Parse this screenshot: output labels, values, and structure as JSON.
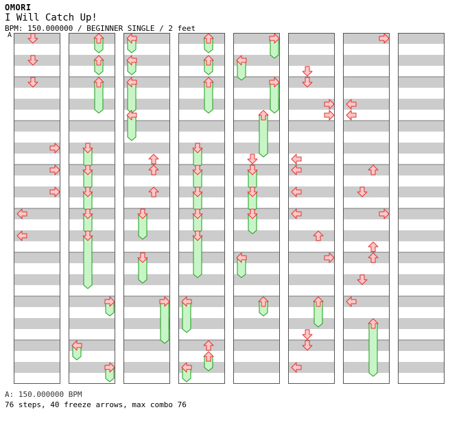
{
  "header": {
    "artist": "OMORI",
    "title": "I Will Catch Up!",
    "info": "BPM: 150.000000 / BEGINNER SINGLE / 2 feet",
    "bpm_marker": "A"
  },
  "footer": {
    "bpm_legend": "A: 150.000000 BPM",
    "summary": "76 steps, 40 freeze arrows, max combo 76"
  },
  "colors": {
    "stripe": "#cccccc",
    "border": "#555555",
    "arrow_fill": "#ffc7c7",
    "arrow_stroke": "#e03030",
    "freeze_fill": "#c8f5c8",
    "freeze_stroke": "#1a9a1a"
  },
  "chart_data": {
    "type": "step-chart",
    "columns_count": 8,
    "measures_per_column": 8,
    "lanes": [
      "left",
      "down",
      "up",
      "right"
    ],
    "notes_unit": "beats (4 beats per measure, 32 beats per column)",
    "notes": [
      {
        "col": 0,
        "lane": "down",
        "beat": 0
      },
      {
        "col": 0,
        "lane": "down",
        "beat": 2
      },
      {
        "col": 0,
        "lane": "down",
        "beat": 4
      },
      {
        "col": 0,
        "lane": "right",
        "beat": 10
      },
      {
        "col": 0,
        "lane": "right",
        "beat": 12
      },
      {
        "col": 0,
        "lane": "right",
        "beat": 14
      },
      {
        "col": 0,
        "lane": "left",
        "beat": 16
      },
      {
        "col": 0,
        "lane": "left",
        "beat": 18
      },
      {
        "col": 1,
        "lane": "up",
        "beat": 0,
        "freeze": 1
      },
      {
        "col": 1,
        "lane": "up",
        "beat": 2,
        "freeze": 1
      },
      {
        "col": 1,
        "lane": "up",
        "beat": 4,
        "freeze": 2.5
      },
      {
        "col": 1,
        "lane": "down",
        "beat": 10,
        "freeze": 1.5
      },
      {
        "col": 1,
        "lane": "down",
        "beat": 12,
        "freeze": 1.5
      },
      {
        "col": 1,
        "lane": "down",
        "beat": 14,
        "freeze": 1.5
      },
      {
        "col": 1,
        "lane": "down",
        "beat": 16,
        "freeze": 1.5
      },
      {
        "col": 1,
        "lane": "down",
        "beat": 18,
        "freeze": 4.5
      },
      {
        "col": 1,
        "lane": "right",
        "beat": 24,
        "freeze": 1
      },
      {
        "col": 1,
        "lane": "left",
        "beat": 28,
        "freeze": 1
      },
      {
        "col": 1,
        "lane": "right",
        "beat": 30,
        "freeze": 1
      },
      {
        "col": 2,
        "lane": "left",
        "beat": 0,
        "freeze": 1
      },
      {
        "col": 2,
        "lane": "left",
        "beat": 2,
        "freeze": 1
      },
      {
        "col": 2,
        "lane": "left",
        "beat": 4,
        "freeze": 2.5
      },
      {
        "col": 2,
        "lane": "left",
        "beat": 7,
        "freeze": 2
      },
      {
        "col": 2,
        "lane": "up",
        "beat": 11
      },
      {
        "col": 2,
        "lane": "up",
        "beat": 12
      },
      {
        "col": 2,
        "lane": "up",
        "beat": 14
      },
      {
        "col": 2,
        "lane": "down",
        "beat": 16,
        "freeze": 2
      },
      {
        "col": 2,
        "lane": "down",
        "beat": 20,
        "freeze": 2
      },
      {
        "col": 2,
        "lane": "right",
        "beat": 24,
        "freeze": 3.5
      },
      {
        "col": 3,
        "lane": "up",
        "beat": 0,
        "freeze": 1
      },
      {
        "col": 3,
        "lane": "up",
        "beat": 2,
        "freeze": 1
      },
      {
        "col": 3,
        "lane": "up",
        "beat": 4,
        "freeze": 2.5
      },
      {
        "col": 3,
        "lane": "down",
        "beat": 10,
        "freeze": 1.5
      },
      {
        "col": 3,
        "lane": "down",
        "beat": 12,
        "freeze": 1.5
      },
      {
        "col": 3,
        "lane": "down",
        "beat": 14,
        "freeze": 1.5
      },
      {
        "col": 3,
        "lane": "down",
        "beat": 16,
        "freeze": 1.5
      },
      {
        "col": 3,
        "lane": "down",
        "beat": 18,
        "freeze": 3.5
      },
      {
        "col": 3,
        "lane": "left",
        "beat": 24,
        "freeze": 2.5
      },
      {
        "col": 3,
        "lane": "up",
        "beat": 28
      },
      {
        "col": 3,
        "lane": "up",
        "beat": 29,
        "freeze": 1
      },
      {
        "col": 3,
        "lane": "left",
        "beat": 30,
        "freeze": 1
      },
      {
        "col": 4,
        "lane": "right",
        "beat": 0,
        "freeze": 1.5
      },
      {
        "col": 4,
        "lane": "left",
        "beat": 2,
        "freeze": 1.5
      },
      {
        "col": 4,
        "lane": "right",
        "beat": 4,
        "freeze": 2.5
      },
      {
        "col": 4,
        "lane": "up",
        "beat": 7,
        "freeze": 3.5
      },
      {
        "col": 4,
        "lane": "down",
        "beat": 11
      },
      {
        "col": 4,
        "lane": "down",
        "beat": 12,
        "freeze": 1.5
      },
      {
        "col": 4,
        "lane": "down",
        "beat": 14,
        "freeze": 1.5
      },
      {
        "col": 4,
        "lane": "down",
        "beat": 16,
        "freeze": 1.5
      },
      {
        "col": 4,
        "lane": "left",
        "beat": 20,
        "freeze": 1.5
      },
      {
        "col": 4,
        "lane": "up",
        "beat": 24,
        "freeze": 1
      },
      {
        "col": 5,
        "lane": "down",
        "beat": 3
      },
      {
        "col": 5,
        "lane": "down",
        "beat": 4
      },
      {
        "col": 5,
        "lane": "right",
        "beat": 6
      },
      {
        "col": 5,
        "lane": "right",
        "beat": 7
      },
      {
        "col": 5,
        "lane": "left",
        "beat": 11
      },
      {
        "col": 5,
        "lane": "left",
        "beat": 12
      },
      {
        "col": 5,
        "lane": "left",
        "beat": 14
      },
      {
        "col": 5,
        "lane": "left",
        "beat": 16
      },
      {
        "col": 5,
        "lane": "up",
        "beat": 18
      },
      {
        "col": 5,
        "lane": "right",
        "beat": 20
      },
      {
        "col": 5,
        "lane": "up",
        "beat": 24,
        "freeze": 2
      },
      {
        "col": 5,
        "lane": "down",
        "beat": 27
      },
      {
        "col": 5,
        "lane": "down",
        "beat": 28
      },
      {
        "col": 5,
        "lane": "left",
        "beat": 30
      },
      {
        "col": 6,
        "lane": "right",
        "beat": 0
      },
      {
        "col": 6,
        "lane": "left",
        "beat": 6
      },
      {
        "col": 6,
        "lane": "left",
        "beat": 7
      },
      {
        "col": 6,
        "lane": "up",
        "beat": 12
      },
      {
        "col": 6,
        "lane": "down",
        "beat": 14
      },
      {
        "col": 6,
        "lane": "right",
        "beat": 16
      },
      {
        "col": 6,
        "lane": "up",
        "beat": 19
      },
      {
        "col": 6,
        "lane": "up",
        "beat": 20
      },
      {
        "col": 6,
        "lane": "down",
        "beat": 22
      },
      {
        "col": 6,
        "lane": "left",
        "beat": 24
      },
      {
        "col": 6,
        "lane": "up",
        "beat": 26,
        "freeze": 4.5
      }
    ]
  }
}
